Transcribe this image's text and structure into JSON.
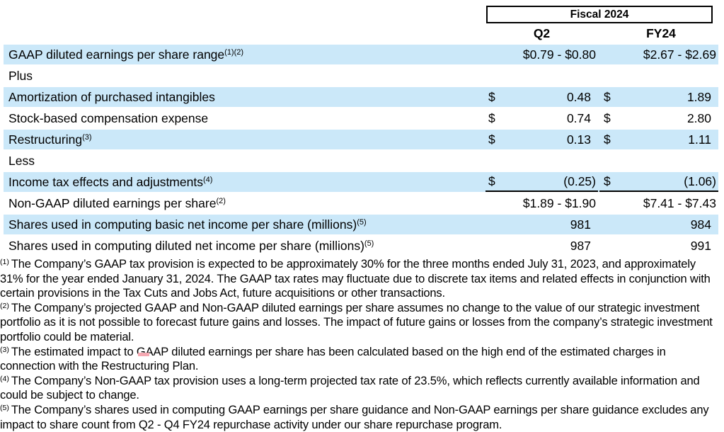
{
  "header": {
    "fiscal_label": "Fiscal 2024",
    "col_q2": "Q2",
    "col_fy24": "FY24"
  },
  "table": {
    "rows": [
      {
        "label": "GAAP diluted earnings per share range",
        "sup": "(1)(2)",
        "q2": "$0.79 - $0.80",
        "fy": "$2.67 - $2.69",
        "shaded": true
      },
      {
        "label": "Plus",
        "shaded": false
      },
      {
        "label": "Amortization of purchased intangibles",
        "q2_currency": "$",
        "q2": "0.48",
        "fy_currency": "$",
        "fy": "1.89",
        "shaded": true
      },
      {
        "label": "Stock-based compensation expense",
        "q2_currency": "$",
        "q2": "0.74",
        "fy_currency": "$",
        "fy": "2.80",
        "shaded": false
      },
      {
        "label": "Restructuring",
        "sup": "(3)",
        "q2_currency": "$",
        "q2": "0.13",
        "fy_currency": "$",
        "fy": "1.11",
        "shaded": true
      },
      {
        "label": "Less",
        "shaded": false
      },
      {
        "label": "Income tax effects and adjustments",
        "sup": "(4)",
        "q2_currency": "$",
        "q2": "(0.25)",
        "fy_currency": "$",
        "fy": "(1.06)",
        "shaded": true,
        "underline": true
      },
      {
        "label": "Non-GAAP diluted earnings per share",
        "sup": "(2)",
        "q2": "$1.89 - $1.90",
        "fy": "$7.41 - $7.43",
        "shaded": false
      },
      {
        "label": "Shares used in computing basic net income per share (millions)",
        "sup": "(5)",
        "q2": "981",
        "fy": "984",
        "shaded": true
      },
      {
        "label": "Shares used in computing diluted net income per share (millions)",
        "sup": "(5)",
        "q2": "987",
        "fy": "991",
        "shaded": false
      }
    ]
  },
  "footnotes": [
    {
      "marker": "(1)",
      "text": "The Company’s GAAP tax provision is expected to be approximately 30% for the three months ended July 31, 2023, and approximately 31% for the year ended January 31, 2024. The GAAP tax rates may fluctuate due to discrete tax items and related effects in conjunction with certain provisions in the Tax Cuts and Jobs Act, future acquisitions or other transactions."
    },
    {
      "marker": "(2)",
      "text": "The Company’s projected GAAP and Non-GAAP diluted earnings per share assumes no change to the value of our strategic investment portfolio as it is not possible to forecast future gains and losses. The impact of future gains or losses from the company’s strategic investment portfolio could be material."
    },
    {
      "marker": "(3)",
      "text": "The estimated impact to GAAP diluted earnings per share has been calculated based on the high end of the estimated charges in connection with the Restructuring Plan."
    },
    {
      "marker": "(4)",
      "text": "The Company’s Non-GAAP tax provision uses a long-term projected tax rate of 23.5%, which reflects currently available information and could be subject to change."
    },
    {
      "marker": "(5)",
      "text": "The Company’s shares used in computing GAAP earnings per share guidance and Non-GAAP earnings per share guidance excludes any impact to share count from Q2 - Q4 FY24 repurchase activity under our share repurchase program."
    }
  ],
  "colors": {
    "row_highlight": "#cbe8f9",
    "annotation_mark": "#f5a9b2",
    "border": "#000000"
  }
}
